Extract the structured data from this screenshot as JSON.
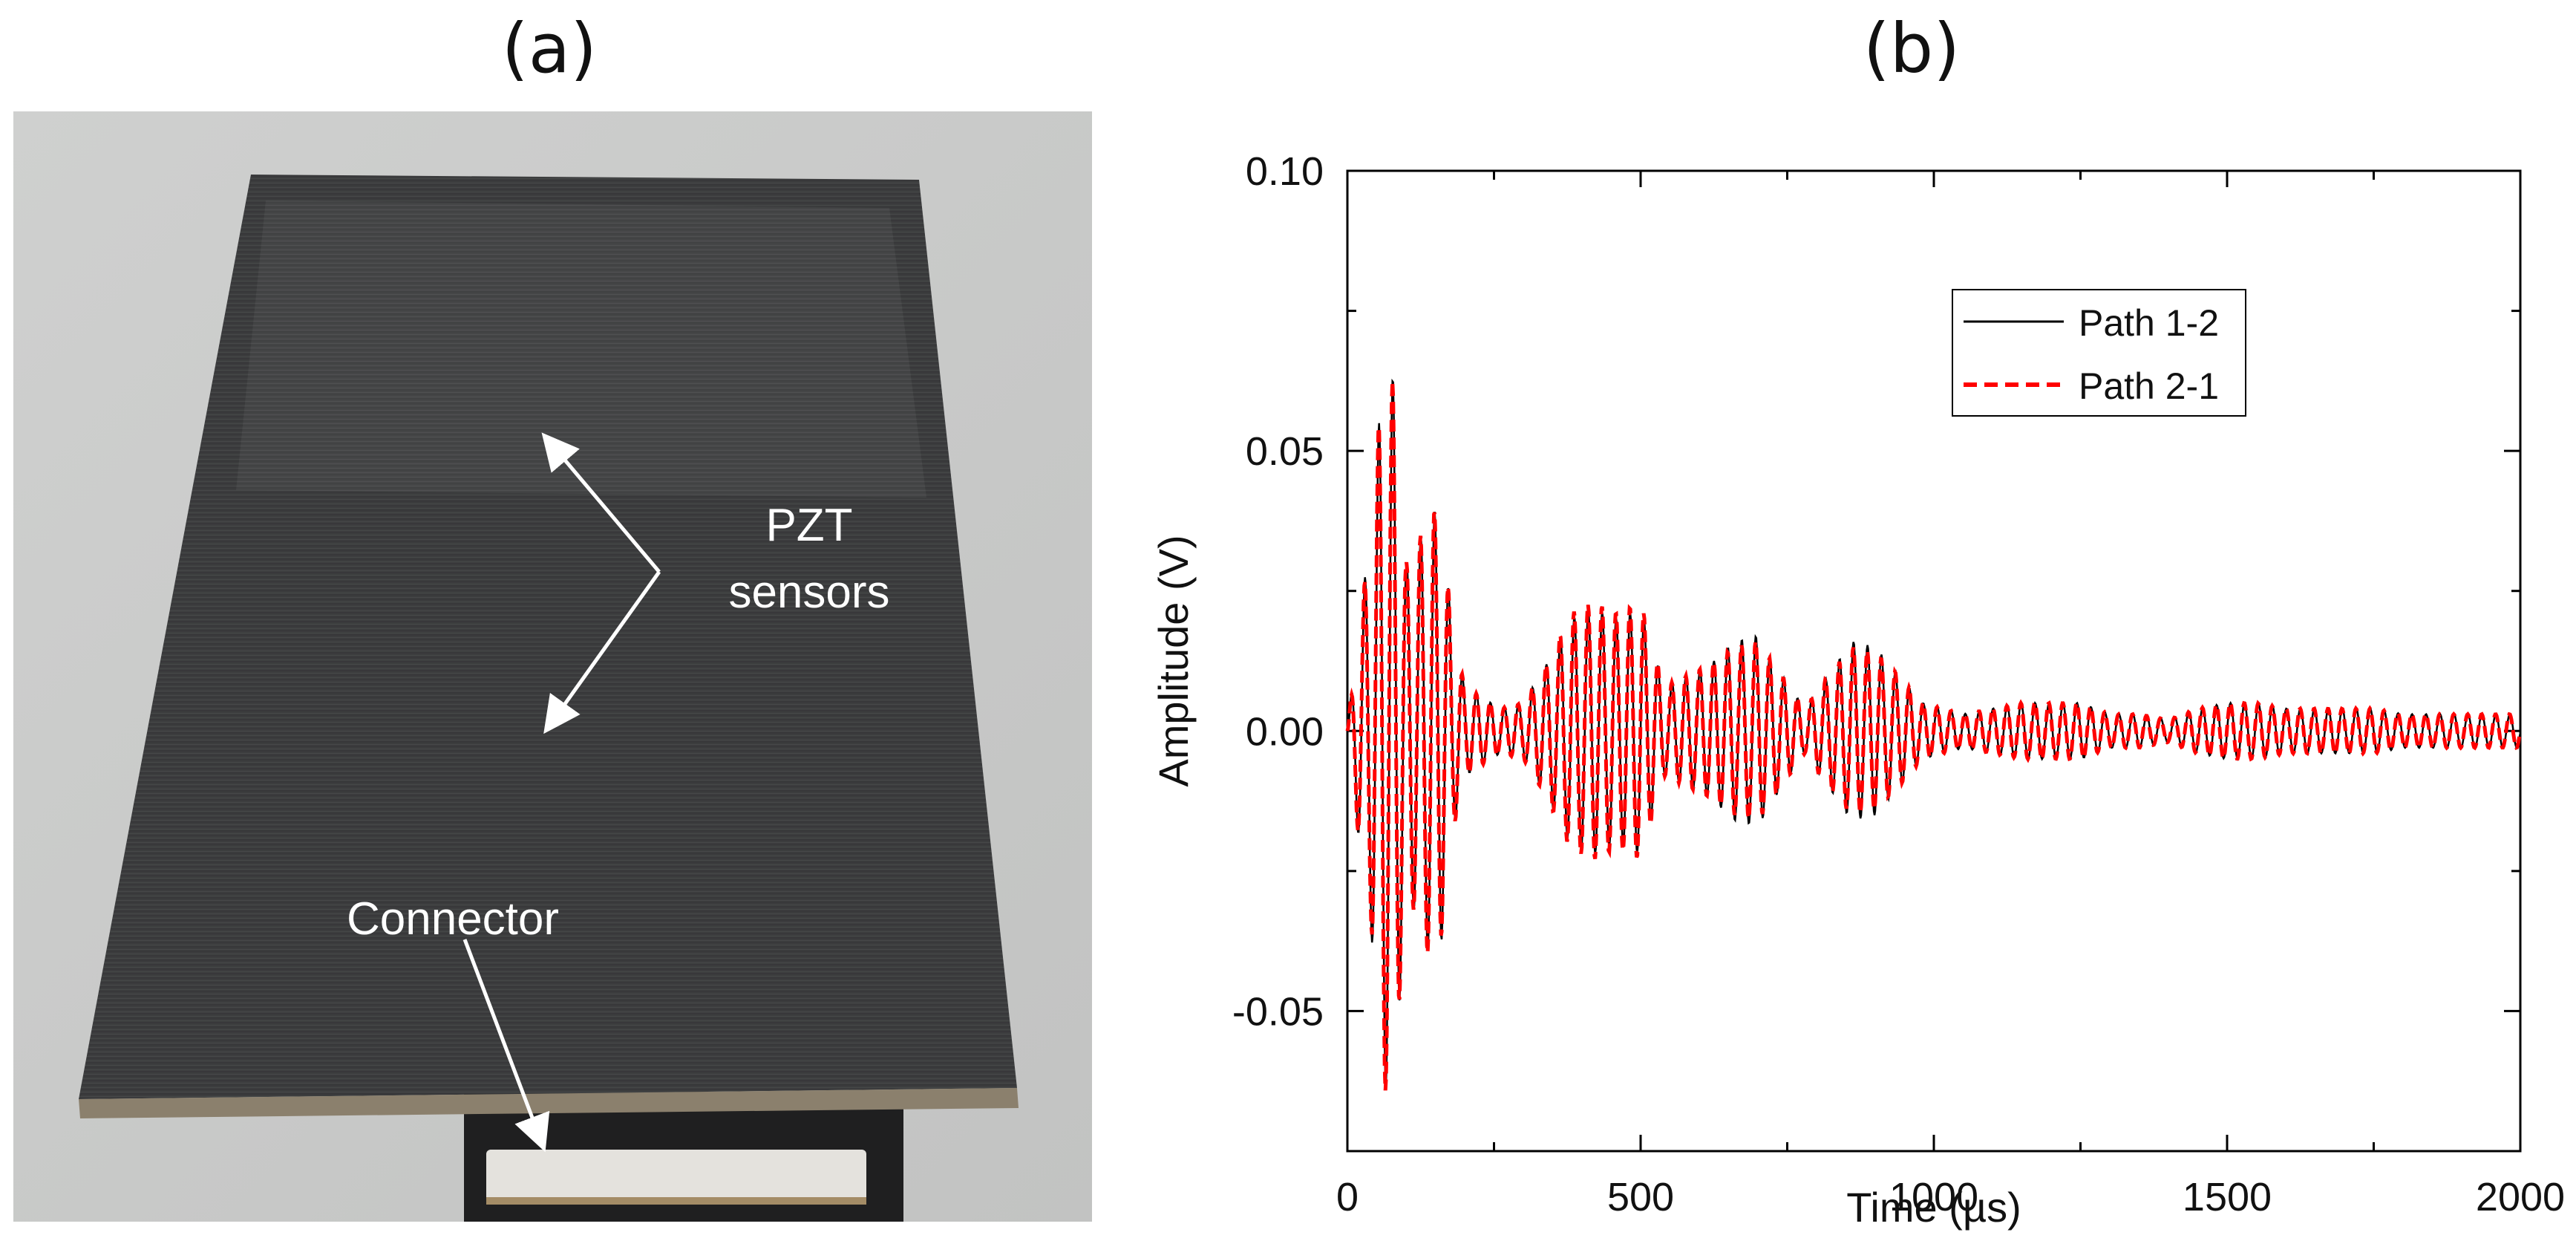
{
  "panels": {
    "a_label": "(a)",
    "b_label": "(b)"
  },
  "photo": {
    "annotation_sensors_line1": "PZT",
    "annotation_sensors_line2": "sensors",
    "annotation_connector": "Connector",
    "colors": {
      "background": "#c9cac9",
      "laminate": "#3a3b3c",
      "annotation_text": "#ffffff",
      "connector_body": "#e4e2dd"
    }
  },
  "chart_data": {
    "type": "line",
    "title": "",
    "xlabel": "Time (µs)",
    "ylabel": "Amplitude (V)",
    "xlim": [
      0,
      2000
    ],
    "ylim": [
      -0.075,
      0.1
    ],
    "x_ticks": [
      0,
      500,
      1000,
      1500,
      2000
    ],
    "x_tick_labels": [
      "0",
      "500",
      "1000",
      "1500",
      "2000"
    ],
    "y_ticks": [
      -0.05,
      0.0,
      0.05,
      0.1
    ],
    "y_tick_labels": [
      "-0.05",
      "0.00",
      "0.05",
      "0.10"
    ],
    "legend_position": "top-right",
    "series": [
      {
        "name": "Path 1-2",
        "color": "#000000",
        "style": "solid",
        "envelope": {
          "t": [
            0,
            20,
            40,
            60,
            80,
            100,
            120,
            140,
            160,
            180,
            200,
            230,
            260,
            300,
            340,
            380,
            420,
            460,
            500,
            540,
            580,
            620,
            660,
            700,
            740,
            780,
            820,
            860,
            900,
            940,
            980,
            1050,
            1150,
            1200,
            1250,
            1300,
            1350,
            1400,
            1450,
            1500,
            1550,
            1600,
            1650,
            1700,
            1750,
            1800,
            1850,
            1900,
            1950,
            2000
          ],
          "amp": [
            0.0,
            0.02,
            0.035,
            0.064,
            0.063,
            0.03,
            0.033,
            0.04,
            0.038,
            0.018,
            0.008,
            0.006,
            0.004,
            0.005,
            0.012,
            0.02,
            0.022,
            0.02,
            0.022,
            0.008,
            0.01,
            0.012,
            0.016,
            0.017,
            0.01,
            0.004,
            0.01,
            0.016,
            0.015,
            0.01,
            0.005,
            0.003,
            0.005,
            0.005,
            0.005,
            0.003,
            0.003,
            0.002,
            0.004,
            0.005,
            0.005,
            0.004,
            0.004,
            0.004,
            0.004,
            0.003,
            0.003,
            0.003,
            0.003,
            0.003
          ]
        }
      },
      {
        "name": "Path 2-1",
        "color": "#ff0000",
        "style": "dashed",
        "envelope": {
          "t": [
            0,
            20,
            40,
            60,
            80,
            100,
            120,
            140,
            160,
            180,
            200,
            230,
            260,
            300,
            340,
            380,
            420,
            460,
            500,
            540,
            580,
            620,
            660,
            700,
            740,
            780,
            820,
            860,
            900,
            940,
            980,
            1050,
            1150,
            1200,
            1250,
            1300,
            1350,
            1400,
            1450,
            1500,
            1550,
            1600,
            1650,
            1700,
            1750,
            1800,
            1850,
            1900,
            1950,
            2000
          ],
          "amp": [
            0.0,
            0.02,
            0.034,
            0.065,
            0.062,
            0.03,
            0.033,
            0.041,
            0.037,
            0.018,
            0.008,
            0.006,
            0.004,
            0.005,
            0.012,
            0.021,
            0.023,
            0.021,
            0.023,
            0.008,
            0.01,
            0.012,
            0.015,
            0.016,
            0.01,
            0.004,
            0.01,
            0.015,
            0.014,
            0.01,
            0.005,
            0.003,
            0.005,
            0.005,
            0.005,
            0.003,
            0.003,
            0.002,
            0.004,
            0.005,
            0.005,
            0.004,
            0.004,
            0.004,
            0.004,
            0.003,
            0.003,
            0.003,
            0.003,
            0.003
          ]
        }
      }
    ]
  }
}
